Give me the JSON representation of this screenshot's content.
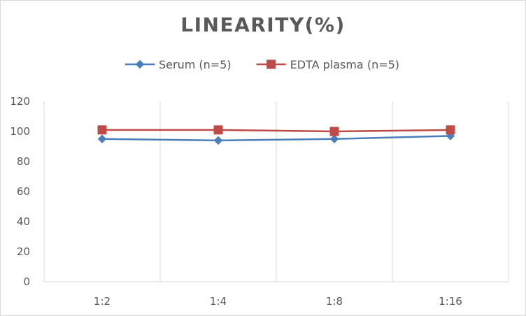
{
  "chart_data": {
    "type": "line",
    "title": "LINEARITY(%)",
    "xlabel": "",
    "ylabel": "",
    "categories": [
      "1:2",
      "1:4",
      "1:8",
      "1:16"
    ],
    "ylim": [
      0,
      120
    ],
    "yticks": [
      0,
      20,
      40,
      60,
      80,
      100,
      120
    ],
    "grid": "vertical",
    "legend_position": "top",
    "series": [
      {
        "name": "Serum (n=5)",
        "values": [
          95,
          94,
          95,
          97
        ],
        "color": "#4a7ebb",
        "marker": "diamond"
      },
      {
        "name": "EDTA plasma (n=5)",
        "values": [
          101,
          101,
          100,
          101
        ],
        "color": "#be4b48",
        "marker": "square"
      }
    ]
  }
}
